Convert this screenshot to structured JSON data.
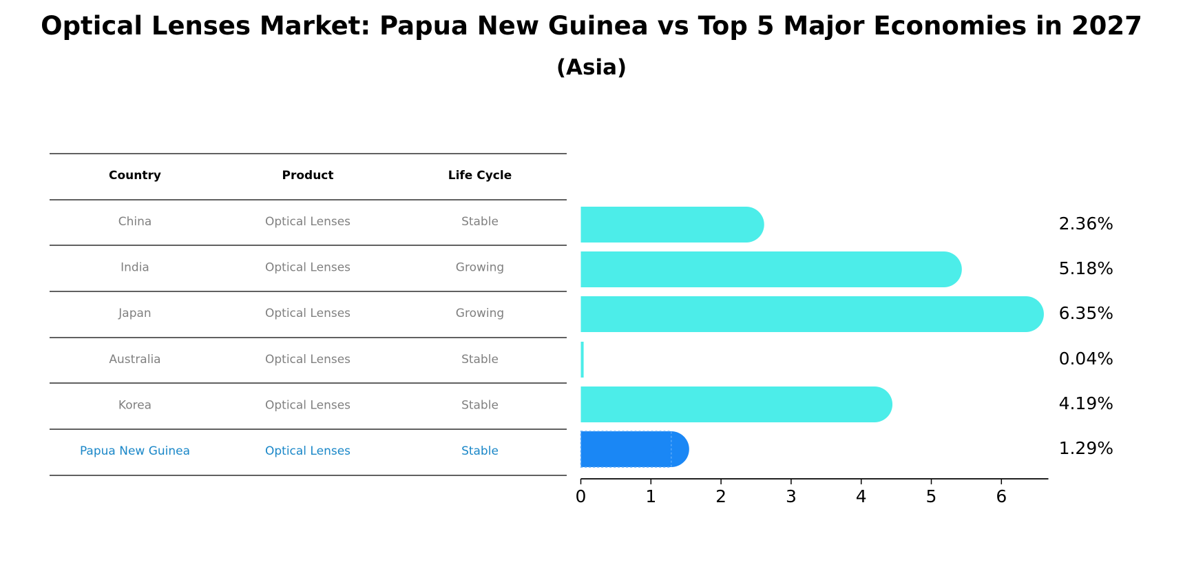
{
  "chart_data": {
    "type": "bar",
    "title": "Optical Lenses Market: Papua New Guinea vs Top 5 Major Economies in 2027",
    "subtitle": "(Asia)",
    "table": {
      "headers": [
        "Country",
        "Product",
        "Life Cycle"
      ],
      "rows": [
        [
          "China",
          "Optical Lenses",
          "Stable"
        ],
        [
          "India",
          "Optical Lenses",
          "Growing"
        ],
        [
          "Japan",
          "Optical Lenses",
          "Growing"
        ],
        [
          "Australia",
          "Optical Lenses",
          "Stable"
        ],
        [
          "Korea",
          "Optical Lenses",
          "Stable"
        ],
        [
          "Papua New Guinea",
          "Optical Lenses",
          "Stable"
        ]
      ]
    },
    "categories": [
      "China",
      "India",
      "Japan",
      "Australia",
      "Korea",
      "Papua New Guinea"
    ],
    "values": [
      2.36,
      5.18,
      6.35,
      0.04,
      4.19,
      1.29
    ],
    "value_labels": [
      "2.36%",
      "5.18%",
      "6.35%",
      "0.04%",
      "4.19%",
      "1.29%"
    ],
    "highlight": "Papua New Guinea",
    "xlim": [
      0,
      6.67
    ],
    "xticks": [
      "0",
      "1",
      "2",
      "3",
      "4",
      "5",
      "6"
    ],
    "xlabel": "",
    "ylabel": "",
    "colors": {
      "bar": "#4cede9",
      "highlight_bar": "#1a87f5",
      "row_text": "#808080",
      "highlight_text": "#1a87c8",
      "header_text": "#000000",
      "rule": "#000000"
    }
  }
}
